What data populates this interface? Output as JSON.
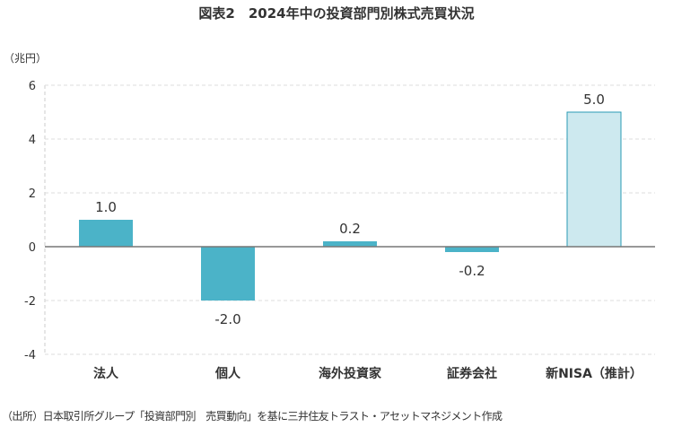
{
  "chart_data": {
    "type": "bar",
    "title": "図表2　2024年中の投資部門別株式売買状況",
    "ylabel": "（兆円）",
    "xlabel": "",
    "categories": [
      "法人",
      "個人",
      "海外投資家",
      "証券会社",
      "新NISA（推計）"
    ],
    "values": [
      1.0,
      -2.0,
      0.2,
      -0.2,
      5.0
    ],
    "data_labels": [
      "1.0",
      "-2.0",
      "0.2",
      "-0.2",
      "5.0"
    ],
    "ylim": [
      -4,
      6
    ],
    "yticks": [
      6,
      4,
      2,
      0,
      -2,
      -4
    ],
    "grid": true,
    "colors": {
      "bar": "#4bb3c8",
      "estimate_bar": "#cde9ef",
      "estimate_border": "#2a9bb5"
    }
  },
  "source": "（出所）日本取引所グループ「投資部門別　売買動向」を基に三井住友トラスト・アセットマネジメント作成"
}
